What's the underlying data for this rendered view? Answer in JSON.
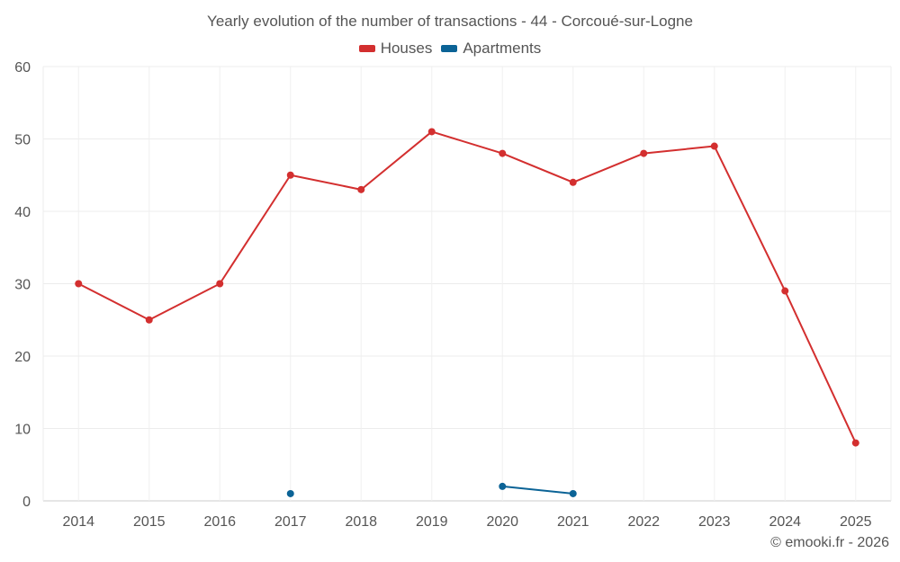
{
  "chart_data": {
    "type": "line",
    "title": "Yearly evolution of the number of transactions - 44 - Corcoué-sur-Logne",
    "categories": [
      "2014",
      "2015",
      "2016",
      "2017",
      "2018",
      "2019",
      "2020",
      "2021",
      "2022",
      "2023",
      "2024",
      "2025"
    ],
    "y_ticks": [
      0,
      10,
      20,
      30,
      40,
      50,
      60
    ],
    "ylim": [
      0,
      60
    ],
    "grid": true,
    "legend_position": "top-center",
    "series": [
      {
        "name": "Houses",
        "color": "#d32f2f",
        "values": [
          30,
          25,
          30,
          45,
          43,
          51,
          48,
          44,
          48,
          49,
          29,
          8
        ]
      },
      {
        "name": "Apartments",
        "color": "#0b6396",
        "values": [
          null,
          null,
          null,
          1,
          null,
          null,
          2,
          1,
          null,
          null,
          null,
          null
        ]
      }
    ]
  },
  "credit": "© emooki.fr - 2026"
}
